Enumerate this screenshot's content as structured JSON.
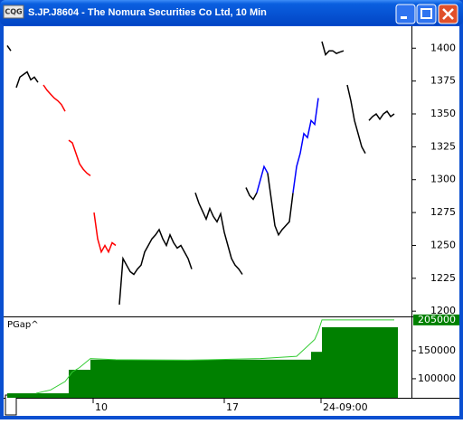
{
  "window": {
    "title": "S.JP.J8604 - The Nomura Securities Co Ltd, 10 Min",
    "icon": "CQG"
  },
  "chart_data": [
    {
      "type": "line",
      "xlim": [
        0,
        108
      ],
      "ylim": [
        1196,
        1416
      ],
      "yticks": [
        1200,
        1225,
        1250,
        1275,
        1300,
        1325,
        1350,
        1375,
        1400
      ],
      "xticks": [
        {
          "value": 23.75,
          "label": "10"
        },
        {
          "value": 60,
          "label": "17"
        },
        {
          "value": 86.75,
          "label": "24-09:00"
        }
      ],
      "series": [
        {
          "color": "#000000",
          "x": [
            0,
            1
          ],
          "values": [
            1402,
            1398
          ]
        },
        {
          "color": "#000000",
          "x": [
            2.5,
            3.5,
            4.5,
            5.5,
            6.5,
            7.5,
            8.5
          ],
          "values": [
            1370,
            1378,
            1380,
            1382,
            1376,
            1378,
            1374
          ]
        },
        {
          "color": "#ff0000",
          "x": [
            10,
            11,
            12,
            13,
            14,
            15,
            16
          ],
          "values": [
            1372,
            1368,
            1365,
            1362,
            1360,
            1357,
            1352
          ]
        },
        {
          "color": "#ff0000",
          "x": [
            17,
            18,
            19,
            20,
            21,
            22,
            23
          ],
          "values": [
            1330,
            1328,
            1320,
            1312,
            1308,
            1305,
            1303
          ]
        },
        {
          "color": "#ff0000",
          "x": [
            24,
            25,
            26,
            27,
            28,
            29,
            30
          ],
          "values": [
            1275,
            1255,
            1245,
            1250,
            1245,
            1252,
            1250
          ]
        },
        {
          "color": "#000000",
          "x": [
            31,
            32,
            33,
            34,
            35,
            36,
            37,
            38,
            39,
            40,
            41,
            42,
            43,
            44,
            45,
            46,
            47,
            48,
            49,
            50,
            51
          ],
          "values": [
            1205,
            1240,
            1235,
            1230,
            1228,
            1232,
            1235,
            1245,
            1250,
            1255,
            1258,
            1262,
            1255,
            1250,
            1258,
            1252,
            1248,
            1250,
            1245,
            1240,
            1232
          ]
        },
        {
          "color": "#000000",
          "x": [
            52,
            53,
            54,
            55,
            56,
            57,
            58,
            59,
            60,
            61,
            62,
            63,
            64,
            65
          ],
          "values": [
            1290,
            1282,
            1276,
            1270,
            1278,
            1272,
            1268,
            1274,
            1260,
            1250,
            1240,
            1235,
            1232,
            1228
          ]
        },
        {
          "color": "#000000",
          "x": [
            66,
            67,
            68,
            69
          ],
          "values": [
            1294,
            1288,
            1285,
            1290
          ]
        },
        {
          "color": "#0000ff",
          "x": [
            69,
            70,
            71,
            72
          ],
          "values": [
            1290,
            1300,
            1310,
            1305
          ]
        },
        {
          "color": "#000000",
          "x": [
            72,
            73,
            74,
            75,
            76,
            77,
            78,
            79
          ],
          "values": [
            1305,
            1285,
            1265,
            1258,
            1262,
            1265,
            1268,
            1290
          ]
        },
        {
          "color": "#0000ff",
          "x": [
            79,
            80,
            81,
            82,
            83,
            84,
            85,
            86
          ],
          "values": [
            1290,
            1310,
            1320,
            1335,
            1332,
            1345,
            1342,
            1362
          ]
        },
        {
          "color": "#000000",
          "x": [
            87,
            88,
            89,
            90,
            91,
            92,
            93
          ],
          "values": [
            1405,
            1395,
            1398,
            1398,
            1396,
            1397,
            1398
          ]
        },
        {
          "color": "#000000",
          "x": [
            94,
            95,
            96,
            97,
            98,
            99
          ],
          "values": [
            1372,
            1360,
            1345,
            1335,
            1325,
            1320
          ]
        },
        {
          "color": "#000000",
          "x": [
            100,
            101,
            102,
            103,
            104,
            105,
            106,
            107
          ],
          "values": [
            1345,
            1348,
            1350,
            1346,
            1350,
            1352,
            1348,
            1350
          ]
        }
      ]
    },
    {
      "type": "area",
      "title": "PGap^",
      "xlim": [
        0,
        108
      ],
      "ylim": [
        66000,
        208000
      ],
      "yticks": [
        100000,
        150000
      ],
      "current_value": 205000,
      "series": [
        {
          "color": "#008000",
          "step": true,
          "x": [
            0,
            17,
            23,
            84,
            87
          ],
          "values": [
            74000,
            116000,
            134000,
            148000,
            192000
          ]
        },
        {
          "color": "#33cc33",
          "x": [
            8,
            12,
            16,
            18,
            20,
            23,
            30,
            50,
            70,
            80,
            83,
            85,
            86,
            87,
            107
          ],
          "values": [
            74000,
            80000,
            95000,
            112000,
            120000,
            136000,
            134000,
            133000,
            136000,
            140000,
            158000,
            170000,
            185000,
            205000,
            205000
          ]
        }
      ]
    }
  ]
}
